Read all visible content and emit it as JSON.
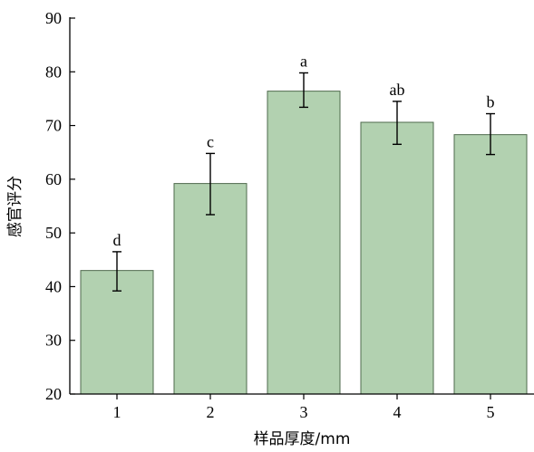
{
  "chart_data": {
    "type": "bar",
    "title": "",
    "xlabel": "样品厚度/mm",
    "ylabel": "感官评分",
    "categories": [
      "1",
      "2",
      "3",
      "4",
      "5"
    ],
    "values": [
      43.0,
      59.2,
      76.4,
      70.6,
      68.3
    ],
    "error_upper": [
      46.5,
      64.8,
      79.8,
      74.5,
      72.2
    ],
    "error_lower": [
      39.2,
      53.4,
      73.4,
      66.5,
      64.6
    ],
    "significance_labels": [
      "d",
      "c",
      "a",
      "ab",
      "b"
    ],
    "ylim": [
      20,
      90
    ],
    "yticks": [
      20,
      30,
      40,
      50,
      60,
      70,
      80,
      90
    ],
    "grid": false,
    "legend": "none",
    "colors": {
      "bar_fill": "#b2d1b0",
      "bar_stroke": "#4f6a4d",
      "axis": "#000000"
    }
  }
}
